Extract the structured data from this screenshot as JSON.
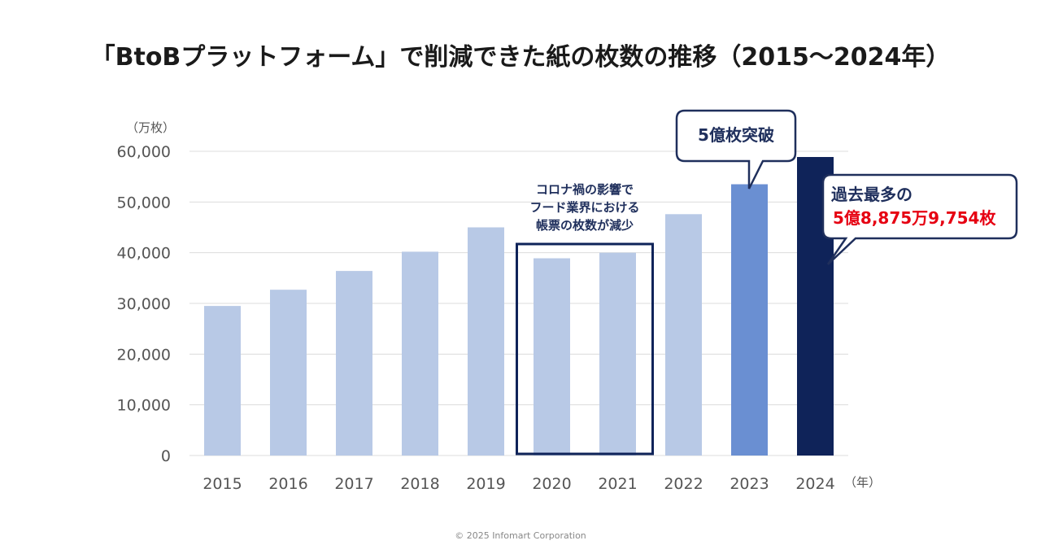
{
  "colors": {
    "bar_light": "#b8c9e6",
    "bar_2023": "#6a8fd2",
    "bar_2024": "#0f2359",
    "navy": "#1f2f5c",
    "red": "#e60012",
    "grid": "#dcdcdc"
  },
  "chart_data": {
    "type": "bar",
    "title": "「BtoBプラットフォーム」で削減できた紙の枚数の推移（2015〜2024年）",
    "ylabel": "（万枚）",
    "xlabel": "（年）",
    "ylim": [
      0,
      60000
    ],
    "yticks": [
      "60,000",
      "50,000",
      "40,000",
      "30,000",
      "20,000",
      "10,000",
      "0"
    ],
    "ytick_values": [
      60000,
      50000,
      40000,
      30000,
      20000,
      10000,
      0
    ],
    "categories": [
      "2015",
      "2016",
      "2017",
      "2018",
      "2019",
      "2020",
      "2021",
      "2022",
      "2023",
      "2024"
    ],
    "values": [
      29500,
      32700,
      36400,
      40200,
      45000,
      38900,
      40000,
      47600,
      53500,
      58876
    ],
    "highlight_box_categories": [
      "2020",
      "2021"
    ],
    "highlight_note_lines": [
      "コロナ禍の影響で",
      "フード業界における",
      "帳票の枚数が減少"
    ],
    "callout_2023": "5億枚突破",
    "callout_2024_line1": "過去最多の",
    "callout_2024_line2": "5億8,875万9,754枚"
  },
  "footer": {
    "copyright": "© 2025 Infomart Corporation"
  }
}
